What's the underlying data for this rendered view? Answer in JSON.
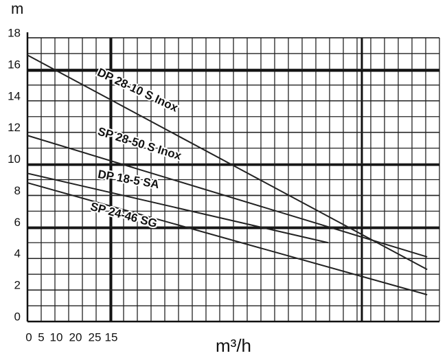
{
  "chart_data": {
    "type": "line",
    "y_label": "m",
    "x_label": "m³/h",
    "x_tick_labels": [
      "0",
      "5",
      "10",
      "20",
      "25",
      "15"
    ],
    "xlim": [
      0,
      74
    ],
    "ylim": [
      0,
      18
    ],
    "yticks": [
      0,
      2,
      4,
      6,
      8,
      10,
      12,
      14,
      16,
      18
    ],
    "grid": true,
    "series": [
      {
        "name": "DP 28-10 S Inox",
        "color": "#222222",
        "x": [
          0,
          71.8
        ],
        "values": [
          16.9,
          3.3
        ]
      },
      {
        "name": "SP 28-50 S Inox",
        "color": "#222222",
        "x": [
          0,
          71.8
        ],
        "values": [
          11.8,
          4.1
        ]
      },
      {
        "name": "DP 18-5 SA",
        "color": "#222222",
        "x": [
          0,
          54
        ],
        "values": [
          9.4,
          5.0
        ]
      },
      {
        "name": "SP 24-46 SG",
        "color": "#222222",
        "x": [
          0,
          71.8
        ],
        "values": [
          8.8,
          1.7
        ]
      }
    ]
  }
}
